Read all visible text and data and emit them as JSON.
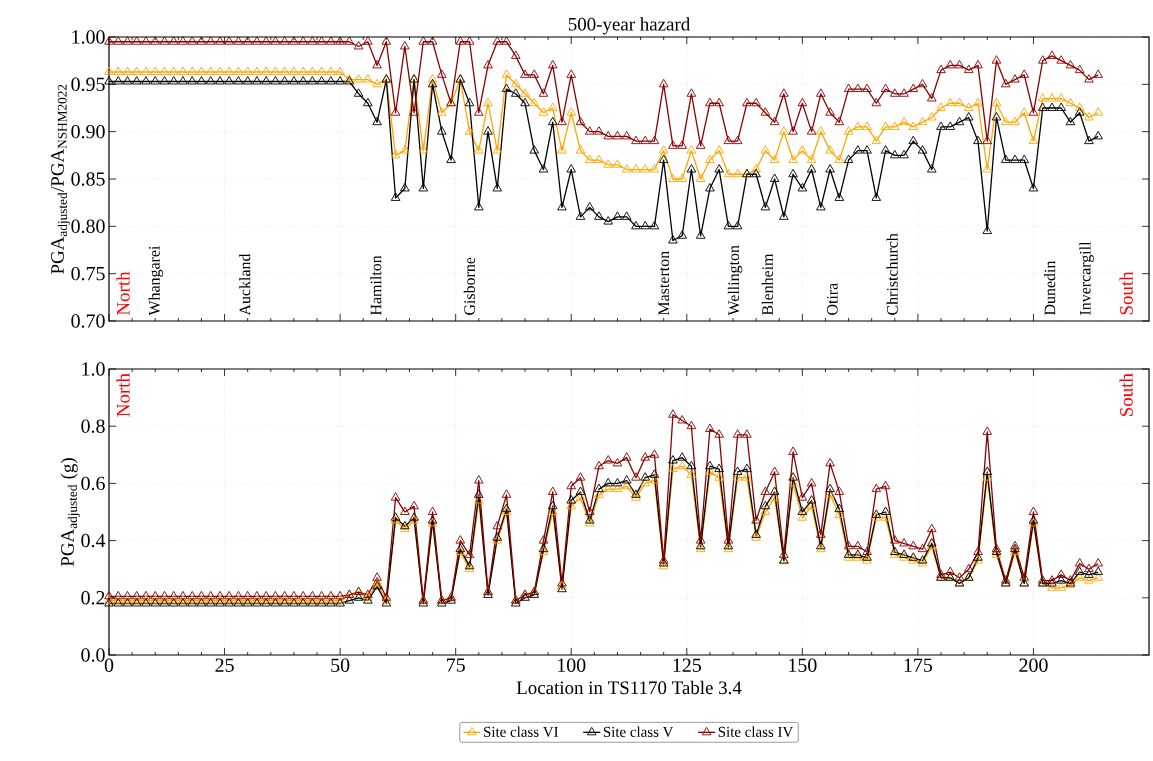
{
  "chart_data": [
    {
      "type": "line",
      "title": "500-year hazard",
      "ylabel": "PGA$_{adjusted}$/PGA$_{NSHM2022}$",
      "x": [
        0,
        2,
        4,
        6,
        8,
        10,
        12,
        14,
        16,
        18,
        20,
        22,
        24,
        26,
        28,
        30,
        32,
        34,
        36,
        38,
        40,
        42,
        44,
        46,
        48,
        50,
        52,
        54,
        56,
        58,
        60,
        62,
        64,
        66,
        68,
        70,
        72,
        74,
        76,
        78,
        80,
        82,
        84,
        86,
        88,
        90,
        92,
        94,
        96,
        98,
        100,
        102,
        104,
        106,
        108,
        110,
        112,
        114,
        116,
        118,
        120,
        122,
        124,
        126,
        128,
        130,
        132,
        134,
        136,
        138,
        140,
        142,
        144,
        146,
        148,
        150,
        152,
        154,
        156,
        158,
        160,
        162,
        164,
        166,
        168,
        170,
        172,
        174,
        176,
        178,
        180,
        182,
        184,
        186,
        188,
        190,
        192,
        194,
        196,
        198,
        200,
        202,
        204,
        206,
        208,
        210,
        212,
        214
      ],
      "series": [
        {
          "color": "#ffa500",
          "values": [
            0.963,
            0.963,
            0.963,
            0.963,
            0.963,
            0.963,
            0.963,
            0.963,
            0.963,
            0.963,
            0.963,
            0.963,
            0.963,
            0.963,
            0.963,
            0.963,
            0.963,
            0.963,
            0.963,
            0.963,
            0.963,
            0.963,
            0.963,
            0.963,
            0.963,
            0.963,
            0.955,
            0.955,
            0.955,
            0.95,
            0.955,
            0.875,
            0.88,
            0.955,
            0.88,
            0.955,
            0.92,
            0.93,
            0.955,
            0.9,
            0.88,
            0.93,
            0.88,
            0.96,
            0.95,
            0.94,
            0.93,
            0.92,
            0.925,
            0.88,
            0.92,
            0.88,
            0.87,
            0.87,
            0.865,
            0.865,
            0.86,
            0.86,
            0.86,
            0.86,
            0.88,
            0.85,
            0.85,
            0.88,
            0.85,
            0.87,
            0.88,
            0.855,
            0.855,
            0.855,
            0.86,
            0.88,
            0.87,
            0.9,
            0.87,
            0.88,
            0.87,
            0.9,
            0.88,
            0.87,
            0.9,
            0.905,
            0.905,
            0.89,
            0.905,
            0.905,
            0.91,
            0.905,
            0.91,
            0.915,
            0.925,
            0.93,
            0.93,
            0.925,
            0.93,
            0.86,
            0.93,
            0.91,
            0.91,
            0.92,
            0.89,
            0.935,
            0.935,
            0.935,
            0.93,
            0.925,
            0.915,
            0.92
          ]
        },
        {
          "color": "#000000",
          "values": [
            0.953,
            0.953,
            0.953,
            0.953,
            0.953,
            0.953,
            0.953,
            0.953,
            0.953,
            0.953,
            0.953,
            0.953,
            0.953,
            0.953,
            0.953,
            0.953,
            0.953,
            0.953,
            0.953,
            0.953,
            0.953,
            0.953,
            0.953,
            0.953,
            0.953,
            0.953,
            0.953,
            0.94,
            0.93,
            0.91,
            0.955,
            0.83,
            0.84,
            0.955,
            0.84,
            0.95,
            0.9,
            0.87,
            0.955,
            0.93,
            0.82,
            0.9,
            0.84,
            0.945,
            0.94,
            0.93,
            0.88,
            0.86,
            0.91,
            0.82,
            0.86,
            0.81,
            0.82,
            0.81,
            0.805,
            0.81,
            0.81,
            0.8,
            0.8,
            0.8,
            0.87,
            0.785,
            0.79,
            0.86,
            0.79,
            0.84,
            0.86,
            0.8,
            0.8,
            0.855,
            0.855,
            0.82,
            0.85,
            0.81,
            0.855,
            0.84,
            0.86,
            0.82,
            0.86,
            0.83,
            0.87,
            0.88,
            0.88,
            0.83,
            0.88,
            0.875,
            0.875,
            0.89,
            0.88,
            0.86,
            0.905,
            0.905,
            0.91,
            0.915,
            0.89,
            0.795,
            0.915,
            0.87,
            0.87,
            0.87,
            0.84,
            0.925,
            0.925,
            0.925,
            0.91,
            0.92,
            0.89,
            0.895
          ]
        },
        {
          "color": "#8b0000",
          "values": [
            0.995,
            0.995,
            0.995,
            0.995,
            0.995,
            0.995,
            0.995,
            0.995,
            0.995,
            0.995,
            0.995,
            0.995,
            0.995,
            0.995,
            0.995,
            0.995,
            0.995,
            0.995,
            0.995,
            0.995,
            0.995,
            0.995,
            0.995,
            0.995,
            0.995,
            0.995,
            0.995,
            0.99,
            0.995,
            0.97,
            0.995,
            0.92,
            0.99,
            0.92,
            0.995,
            0.995,
            0.96,
            0.93,
            0.995,
            0.995,
            0.92,
            0.97,
            0.995,
            0.995,
            0.98,
            0.96,
            0.96,
            0.94,
            0.97,
            0.91,
            0.96,
            0.91,
            0.9,
            0.9,
            0.895,
            0.895,
            0.895,
            0.89,
            0.89,
            0.89,
            0.95,
            0.885,
            0.885,
            0.94,
            0.885,
            0.93,
            0.93,
            0.89,
            0.89,
            0.93,
            0.93,
            0.92,
            0.91,
            0.94,
            0.9,
            0.93,
            0.9,
            0.94,
            0.92,
            0.91,
            0.945,
            0.945,
            0.945,
            0.93,
            0.945,
            0.94,
            0.94,
            0.945,
            0.95,
            0.935,
            0.965,
            0.97,
            0.97,
            0.965,
            0.97,
            0.89,
            0.975,
            0.95,
            0.955,
            0.96,
            0.92,
            0.975,
            0.98,
            0.975,
            0.97,
            0.965,
            0.955,
            0.96
          ]
        }
      ],
      "xlim": [
        0,
        225
      ],
      "xticks": [
        0,
        25,
        50,
        75,
        100,
        125,
        150,
        175,
        200
      ],
      "ylim": [
        0.7,
        1.0
      ],
      "yticks": [
        {
          "value": 0.7,
          "label": "0.70"
        },
        {
          "value": 0.75,
          "label": "0.75"
        },
        {
          "value": 0.8,
          "label": "0.80"
        },
        {
          "value": 0.85,
          "label": "0.85"
        },
        {
          "value": 0.9,
          "label": "0.90"
        },
        {
          "value": 0.95,
          "label": "0.95"
        },
        {
          "value": 1.0,
          "label": "1.00"
        }
      ],
      "tick_labels": "y",
      "grid": true,
      "marker": "triangle",
      "line_style": "solid",
      "annotations": [
        "North",
        "Whangarei",
        "Auckland",
        "Hamilton",
        "Gisborne",
        "Masterton",
        "Wellington",
        "Blenheim",
        "Otira",
        "Christchurch",
        "Dunedin",
        "Invercargill",
        "South"
      ]
    },
    {
      "type": "line",
      "xlabel": "Location in TS1170 Table 3.4",
      "ylabel": "PGA$_{adjusted}$ (g)",
      "x": [
        0,
        2,
        4,
        6,
        8,
        10,
        12,
        14,
        16,
        18,
        20,
        22,
        24,
        26,
        28,
        30,
        32,
        34,
        36,
        38,
        40,
        42,
        44,
        46,
        48,
        50,
        52,
        54,
        56,
        58,
        60,
        62,
        64,
        66,
        68,
        70,
        72,
        74,
        76,
        78,
        80,
        82,
        84,
        86,
        88,
        90,
        92,
        94,
        96,
        98,
        100,
        102,
        104,
        106,
        108,
        110,
        112,
        114,
        116,
        118,
        120,
        122,
        124,
        126,
        128,
        130,
        132,
        134,
        136,
        138,
        140,
        142,
        144,
        146,
        148,
        150,
        152,
        154,
        156,
        158,
        160,
        162,
        164,
        166,
        168,
        170,
        172,
        174,
        176,
        178,
        180,
        182,
        184,
        186,
        188,
        190,
        192,
        194,
        196,
        198,
        200,
        202,
        204,
        206,
        208,
        210,
        212,
        214
      ],
      "series": [
        {
          "name": "Site class VI",
          "color": "#ffa500",
          "values": [
            0.19,
            0.19,
            0.19,
            0.19,
            0.19,
            0.19,
            0.19,
            0.19,
            0.19,
            0.19,
            0.19,
            0.19,
            0.19,
            0.19,
            0.19,
            0.19,
            0.19,
            0.19,
            0.19,
            0.19,
            0.19,
            0.19,
            0.19,
            0.19,
            0.19,
            0.19,
            0.21,
            0.22,
            0.2,
            0.25,
            0.19,
            0.47,
            0.44,
            0.47,
            0.19,
            0.46,
            0.19,
            0.2,
            0.36,
            0.3,
            0.54,
            0.22,
            0.4,
            0.5,
            0.19,
            0.21,
            0.22,
            0.36,
            0.5,
            0.24,
            0.52,
            0.55,
            0.46,
            0.56,
            0.58,
            0.58,
            0.59,
            0.55,
            0.6,
            0.61,
            0.31,
            0.65,
            0.66,
            0.63,
            0.37,
            0.64,
            0.62,
            0.37,
            0.62,
            0.62,
            0.41,
            0.5,
            0.55,
            0.33,
            0.6,
            0.48,
            0.52,
            0.37,
            0.56,
            0.49,
            0.34,
            0.34,
            0.33,
            0.48,
            0.48,
            0.35,
            0.34,
            0.33,
            0.32,
            0.38,
            0.27,
            0.27,
            0.25,
            0.27,
            0.33,
            0.62,
            0.35,
            0.25,
            0.36,
            0.25,
            0.46,
            0.25,
            0.235,
            0.235,
            0.245,
            0.27,
            0.26,
            0.27
          ]
        },
        {
          "name": "Site class V",
          "color": "#000000",
          "values": [
            0.18,
            0.18,
            0.18,
            0.18,
            0.18,
            0.18,
            0.18,
            0.18,
            0.18,
            0.18,
            0.18,
            0.18,
            0.18,
            0.18,
            0.18,
            0.18,
            0.18,
            0.18,
            0.18,
            0.18,
            0.18,
            0.18,
            0.18,
            0.18,
            0.18,
            0.18,
            0.19,
            0.2,
            0.19,
            0.24,
            0.18,
            0.48,
            0.45,
            0.48,
            0.18,
            0.47,
            0.18,
            0.19,
            0.37,
            0.31,
            0.56,
            0.21,
            0.41,
            0.51,
            0.18,
            0.2,
            0.21,
            0.37,
            0.52,
            0.23,
            0.54,
            0.57,
            0.47,
            0.58,
            0.6,
            0.6,
            0.61,
            0.56,
            0.62,
            0.63,
            0.32,
            0.68,
            0.69,
            0.66,
            0.38,
            0.66,
            0.65,
            0.38,
            0.64,
            0.65,
            0.42,
            0.52,
            0.57,
            0.33,
            0.62,
            0.5,
            0.54,
            0.38,
            0.58,
            0.51,
            0.35,
            0.35,
            0.34,
            0.49,
            0.5,
            0.36,
            0.35,
            0.34,
            0.33,
            0.39,
            0.27,
            0.27,
            0.25,
            0.27,
            0.34,
            0.64,
            0.36,
            0.25,
            0.37,
            0.25,
            0.47,
            0.25,
            0.25,
            0.26,
            0.25,
            0.29,
            0.28,
            0.29
          ]
        },
        {
          "name": "Site class IV",
          "color": "#8b0000",
          "values": [
            0.205,
            0.205,
            0.205,
            0.205,
            0.205,
            0.205,
            0.205,
            0.205,
            0.205,
            0.205,
            0.205,
            0.205,
            0.205,
            0.205,
            0.205,
            0.205,
            0.205,
            0.205,
            0.205,
            0.205,
            0.205,
            0.205,
            0.205,
            0.205,
            0.205,
            0.205,
            0.21,
            0.22,
            0.21,
            0.27,
            0.2,
            0.55,
            0.5,
            0.52,
            0.19,
            0.5,
            0.19,
            0.2,
            0.4,
            0.35,
            0.61,
            0.22,
            0.45,
            0.56,
            0.19,
            0.21,
            0.22,
            0.4,
            0.57,
            0.25,
            0.59,
            0.62,
            0.5,
            0.66,
            0.68,
            0.67,
            0.69,
            0.62,
            0.69,
            0.7,
            0.33,
            0.84,
            0.82,
            0.8,
            0.4,
            0.79,
            0.77,
            0.4,
            0.77,
            0.77,
            0.47,
            0.57,
            0.64,
            0.35,
            0.71,
            0.55,
            0.6,
            0.42,
            0.67,
            0.57,
            0.38,
            0.38,
            0.36,
            0.58,
            0.59,
            0.4,
            0.39,
            0.38,
            0.37,
            0.44,
            0.28,
            0.29,
            0.27,
            0.3,
            0.36,
            0.78,
            0.37,
            0.26,
            0.38,
            0.27,
            0.5,
            0.26,
            0.26,
            0.28,
            0.26,
            0.32,
            0.3,
            0.32
          ]
        }
      ],
      "xlim": [
        0,
        225
      ],
      "xticks": [
        0,
        25,
        50,
        75,
        100,
        125,
        150,
        175,
        200
      ],
      "ylim": [
        0.0,
        1.0
      ],
      "yticks": [
        {
          "value": 0.0,
          "label": "0.0"
        },
        {
          "value": 0.2,
          "label": "0.2"
        },
        {
          "value": 0.4,
          "label": "0.4"
        },
        {
          "value": 0.6,
          "label": "0.6"
        },
        {
          "value": 0.8,
          "label": "0.8"
        },
        {
          "value": 1.0,
          "label": "1.0"
        }
      ],
      "grid": true,
      "marker": "triangle",
      "line_style": "solid",
      "legend": "bottom",
      "annotations": [
        "North",
        "South"
      ]
    }
  ]
}
